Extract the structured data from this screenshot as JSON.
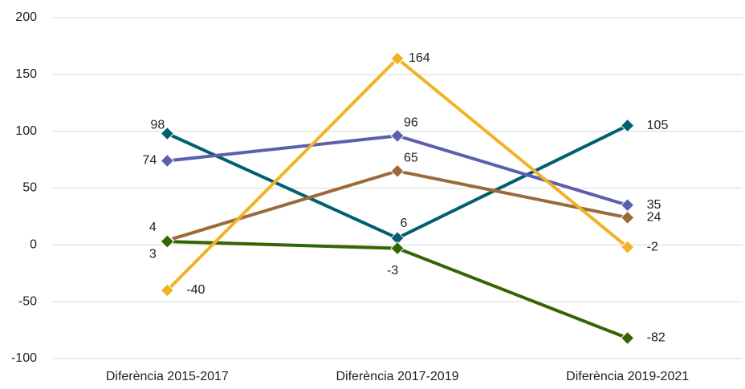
{
  "chart_data": {
    "type": "line",
    "categories": [
      "Diferència 2015-2017",
      "Diferència 2017-2019",
      "Diferència 2019-2021"
    ],
    "series": [
      {
        "color": "#005f6e",
        "values": [
          98,
          6,
          105
        ]
      },
      {
        "color": "#5b5fae",
        "values": [
          74,
          96,
          35
        ]
      },
      {
        "color": "#9c6a3a",
        "values": [
          4,
          65,
          24
        ]
      },
      {
        "color": "#336600",
        "values": [
          3,
          -3,
          -82
        ]
      },
      {
        "color": "#f0b323",
        "values": [
          -40,
          164,
          -2
        ]
      }
    ],
    "ylim": [
      -100,
      200
    ],
    "yticks": [
      -100,
      -50,
      0,
      50,
      100,
      150,
      200
    ],
    "grid": true
  }
}
